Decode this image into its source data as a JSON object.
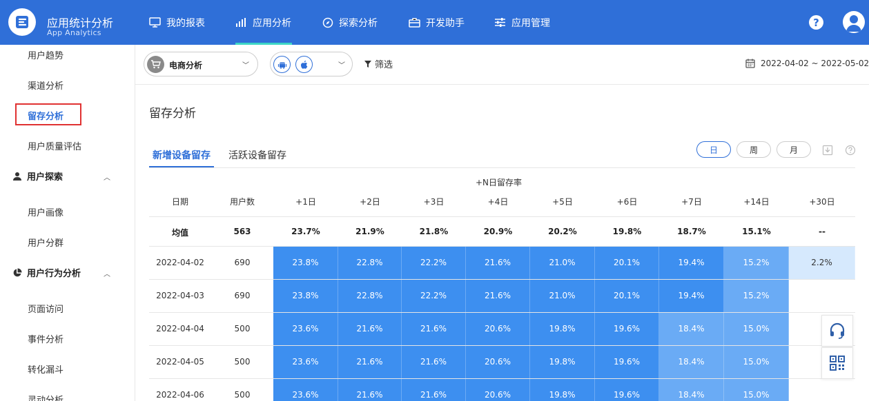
{
  "app": {
    "title_cn": "应用统计分析",
    "title_en": "App Analytics"
  },
  "nav": [
    {
      "label": "我的报表",
      "icon": "monitor-icon"
    },
    {
      "label": "应用分析",
      "icon": "bar-chart-icon",
      "active": true
    },
    {
      "label": "探索分析",
      "icon": "compass-icon"
    },
    {
      "label": "开发助手",
      "icon": "toolbox-icon"
    },
    {
      "label": "应用管理",
      "icon": "sliders-icon"
    }
  ],
  "header": {
    "help_label": "?"
  },
  "sidebar": {
    "items": [
      "用户趋势",
      "渠道分析",
      "留存分析",
      "用户质量评估"
    ],
    "active_item": "留存分析",
    "group_explore": {
      "label": "用户探索",
      "items": [
        "用户画像",
        "用户分群"
      ]
    },
    "group_behavior": {
      "label": "用户行为分析",
      "items": [
        "页面访问",
        "事件分析",
        "转化漏斗",
        "灵动分析"
      ]
    }
  },
  "filter": {
    "app_select": "电商分析",
    "platform_select": [
      "android-icon",
      "apple-icon"
    ],
    "filter_label": "筛选",
    "date_range": "2022-04-02 ~ 2022-05-02"
  },
  "main": {
    "title": "留存分析",
    "tabs": [
      {
        "label": "新增设备留存",
        "active": true
      },
      {
        "label": "活跃设备留存"
      }
    ],
    "granularity": [
      {
        "label": "日",
        "active": true
      },
      {
        "label": "周"
      },
      {
        "label": "月"
      }
    ]
  },
  "table": {
    "group_header": "+N日留存率",
    "columns": [
      "日期",
      "用户数",
      "+1日",
      "+2日",
      "+3日",
      "+4日",
      "+5日",
      "+6日",
      "+7日",
      "+14日",
      "+30日"
    ],
    "average": [
      "均值",
      "563",
      "23.7%",
      "21.9%",
      "21.8%",
      "20.9%",
      "20.2%",
      "19.8%",
      "18.7%",
      "15.1%",
      "--"
    ],
    "rows": [
      [
        "2022-04-02",
        "690",
        "23.8%",
        "22.8%",
        "22.2%",
        "21.6%",
        "21.0%",
        "20.1%",
        "19.4%",
        "15.2%",
        "2.2%"
      ],
      [
        "2022-04-03",
        "690",
        "23.8%",
        "22.8%",
        "22.2%",
        "21.6%",
        "21.0%",
        "20.1%",
        "19.4%",
        "15.2%",
        ""
      ],
      [
        "2022-04-04",
        "500",
        "23.6%",
        "21.6%",
        "21.6%",
        "20.6%",
        "19.8%",
        "19.6%",
        "18.4%",
        "15.0%",
        ""
      ],
      [
        "2022-04-05",
        "500",
        "23.6%",
        "21.6%",
        "21.6%",
        "20.6%",
        "19.8%",
        "19.6%",
        "18.4%",
        "15.0%",
        ""
      ],
      [
        "2022-04-06",
        "500",
        "23.6%",
        "21.6%",
        "21.6%",
        "20.6%",
        "19.8%",
        "19.6%",
        "18.4%",
        "15.0%",
        ""
      ]
    ]
  },
  "colors": {
    "primary": "#2f6fd8",
    "heat_strong": "#3d8ff0",
    "heat_medium": "#6aabf5",
    "heat_light": "#d6e9fd",
    "highlight": "#e03131"
  }
}
